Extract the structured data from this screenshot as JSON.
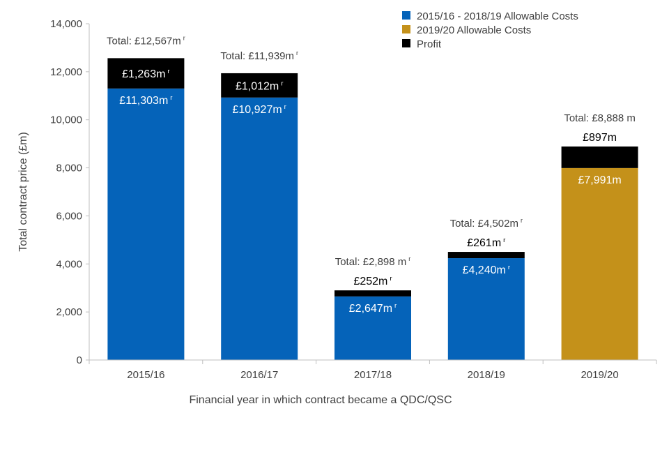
{
  "chart_data": {
    "type": "bar",
    "stacked": true,
    "title": "",
    "xlabel": "Financial year in which contract became a QDC/QSC",
    "ylabel": "Total contract price (£m)",
    "ylim": [
      0,
      14000
    ],
    "yticks": [
      0,
      2000,
      4000,
      6000,
      8000,
      10000,
      12000,
      14000
    ],
    "ytick_labels": [
      "0",
      "2,000",
      "4,000",
      "6,000",
      "8,000",
      "10,000",
      "12,000",
      "14,000"
    ],
    "grid": false,
    "legend_position": "top-right",
    "categories": [
      "2015/16",
      "2016/17",
      "2017/18",
      "2018/19",
      "2019/20"
    ],
    "revised_marker": "r",
    "series": [
      {
        "name": "2015/16 - 2018/19 Allowable Costs",
        "color": "#0563b9",
        "values": [
          11303,
          10927,
          2647,
          4240,
          null
        ]
      },
      {
        "name": "2019/20 Allowable Costs",
        "color": "#c4911a",
        "values": [
          null,
          null,
          null,
          null,
          7991
        ]
      },
      {
        "name": "Profit",
        "color": "#000000",
        "values": [
          1263,
          1012,
          252,
          261,
          897
        ]
      }
    ],
    "cost_labels": [
      {
        "text": "£11,303m",
        "revised": true
      },
      {
        "text": "£10,927m",
        "revised": true
      },
      {
        "text": "£2,647m",
        "revised": true
      },
      {
        "text": "£4,240m",
        "revised": true
      },
      {
        "text": "£7,991m",
        "revised": false
      }
    ],
    "profit_labels": [
      {
        "text": "£1,263m",
        "revised": true
      },
      {
        "text": "£1,012m",
        "revised": true
      },
      {
        "text": "£252m",
        "revised": true
      },
      {
        "text": "£261m",
        "revised": true
      },
      {
        "text": "£897m",
        "revised": false
      }
    ],
    "total_labels": [
      {
        "text": "Total: £12,567m",
        "revised": true,
        "value": 12567
      },
      {
        "text": "Total: £11,939m",
        "revised": true,
        "value": 11939
      },
      {
        "text": "Total: £2,898 m",
        "revised": true,
        "value": 2898
      },
      {
        "text": "Total: £4,502m",
        "revised": true,
        "value": 4502
      },
      {
        "text": "Total: £8,888 m",
        "revised": false,
        "value": 8888
      }
    ]
  }
}
